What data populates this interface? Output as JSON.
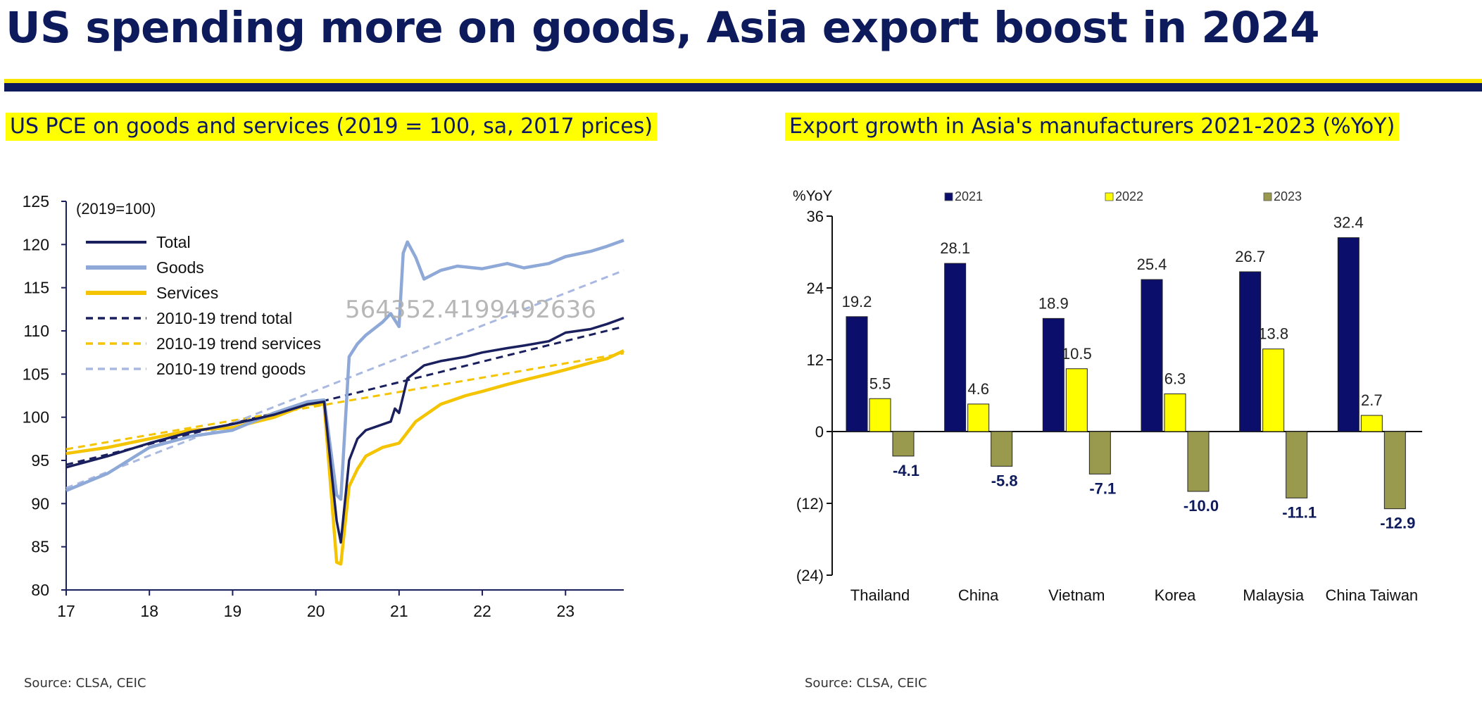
{
  "page": {
    "title": "US spending more on goods, Asia export boost in 2024",
    "watermark": "564352.4199492636",
    "colors": {
      "navy": "#0d1a5c",
      "highlight": "#ffff00"
    }
  },
  "left": {
    "subtitle": "US PCE on goods and services (2019 = 100, sa, 2017 prices)",
    "source": "Source: CLSA, CEIC"
  },
  "right": {
    "subtitle": "Export growth in Asia's manufacturers 2021-2023 (%YoY)",
    "source": "Source: CLSA, CEIC"
  },
  "chart_data": [
    {
      "type": "line",
      "annotation": "(2019=100)",
      "ylim": [
        80,
        125
      ],
      "yticks": [
        80,
        85,
        90,
        95,
        100,
        105,
        110,
        115,
        120,
        125
      ],
      "xlim": [
        17,
        23.7
      ],
      "xticks": [
        "17",
        "18",
        "19",
        "20",
        "21",
        "22",
        "23"
      ],
      "legend_position": "top-left",
      "grid": false,
      "series": [
        {
          "name": "Total",
          "color": "#1a1f5e",
          "style": "solid",
          "x": [
            17.0,
            17.5,
            18.0,
            18.5,
            19.0,
            19.5,
            19.9,
            20.1,
            20.25,
            20.3,
            20.4,
            20.5,
            20.6,
            20.9,
            20.95,
            21.0,
            21.1,
            21.3,
            21.5,
            21.8,
            22.0,
            22.3,
            22.5,
            22.8,
            23.0,
            23.3,
            23.5,
            23.7
          ],
          "values": [
            94.2,
            95.5,
            97.0,
            98.3,
            99.2,
            100.3,
            101.5,
            101.8,
            88,
            85.5,
            95,
            97.5,
            98.5,
            99.5,
            101,
            100.5,
            104.5,
            106,
            106.5,
            107,
            107.5,
            108,
            108.3,
            108.8,
            109.8,
            110.2,
            110.8,
            111.5
          ]
        },
        {
          "name": "Goods",
          "color": "#8ea9d8",
          "style": "solid",
          "x": [
            17.0,
            17.5,
            18.0,
            18.5,
            19.0,
            19.5,
            19.9,
            20.1,
            20.25,
            20.3,
            20.4,
            20.5,
            20.6,
            20.8,
            20.9,
            21.0,
            21.05,
            21.1,
            21.2,
            21.3,
            21.5,
            21.7,
            22.0,
            22.3,
            22.5,
            22.8,
            23.0,
            23.3,
            23.5,
            23.7
          ],
          "values": [
            91.5,
            93.5,
            96.5,
            97.8,
            98.5,
            100.5,
            101.8,
            102,
            91,
            90.5,
            107,
            108.5,
            109.5,
            111,
            112,
            110.5,
            119,
            120.3,
            118.5,
            116,
            117,
            117.5,
            117.2,
            117.8,
            117.3,
            117.8,
            118.6,
            119.2,
            119.8,
            120.5
          ]
        },
        {
          "name": "Services",
          "color": "#f5c400",
          "style": "solid",
          "x": [
            17.0,
            17.5,
            18.0,
            18.5,
            19.0,
            19.5,
            19.9,
            20.1,
            20.25,
            20.3,
            20.4,
            20.5,
            20.6,
            20.8,
            21.0,
            21.2,
            21.5,
            21.8,
            22.0,
            22.3,
            22.5,
            22.8,
            23.0,
            23.3,
            23.5,
            23.7
          ],
          "values": [
            95.8,
            96.5,
            97.5,
            98.5,
            98.8,
            100,
            101.5,
            101.5,
            83.2,
            83,
            92,
            94,
            95.5,
            96.5,
            97,
            99.5,
            101.5,
            102.5,
            103,
            103.8,
            104.3,
            105,
            105.5,
            106.3,
            106.8,
            107.7
          ]
        },
        {
          "name": "2010-19 trend total",
          "color": "#1a1f5e",
          "style": "dashed",
          "x": [
            17.0,
            23.7
          ],
          "values": [
            94.5,
            110.5
          ]
        },
        {
          "name": "2010-19 trend services",
          "color": "#f5c400",
          "style": "dashed",
          "x": [
            17.0,
            23.7
          ],
          "values": [
            96.3,
            107.4
          ]
        },
        {
          "name": "2010-19 trend goods",
          "color": "#a8b8e0",
          "style": "dashed",
          "x": [
            17.0,
            23.7
          ],
          "values": [
            91.8,
            117.0
          ]
        }
      ]
    },
    {
      "type": "bar",
      "ylabel": "%YoY",
      "ylim": [
        -24,
        36
      ],
      "yticks": [
        "(24)",
        "(12)",
        "0",
        "12",
        "24",
        "36"
      ],
      "categories": [
        "Thailand",
        "China",
        "Vietnam",
        "Korea",
        "Malaysia",
        "China Taiwan"
      ],
      "legend_position": "top",
      "grid": false,
      "series": [
        {
          "name": "2021",
          "color": "#0b0f6b",
          "values": [
            19.2,
            28.1,
            18.9,
            25.4,
            26.7,
            32.4
          ],
          "labels": [
            "19.2",
            "28.1",
            "18.9",
            "25.4",
            "26.7",
            "32.4"
          ]
        },
        {
          "name": "2022",
          "color": "#ffff00",
          "values": [
            5.5,
            4.6,
            10.5,
            6.3,
            13.8,
            2.7
          ],
          "labels": [
            "5.5",
            "4.6",
            "10.5",
            "6.3",
            "13.8",
            "2.7"
          ]
        },
        {
          "name": "2023",
          "color": "#999a4e",
          "values": [
            -4.1,
            -5.8,
            -7.1,
            -10.0,
            -11.1,
            -12.9
          ],
          "labels": [
            "-4.1",
            "-5.8",
            "-7.1",
            "-10.0",
            "-11.1",
            "-12.9"
          ]
        }
      ]
    }
  ]
}
